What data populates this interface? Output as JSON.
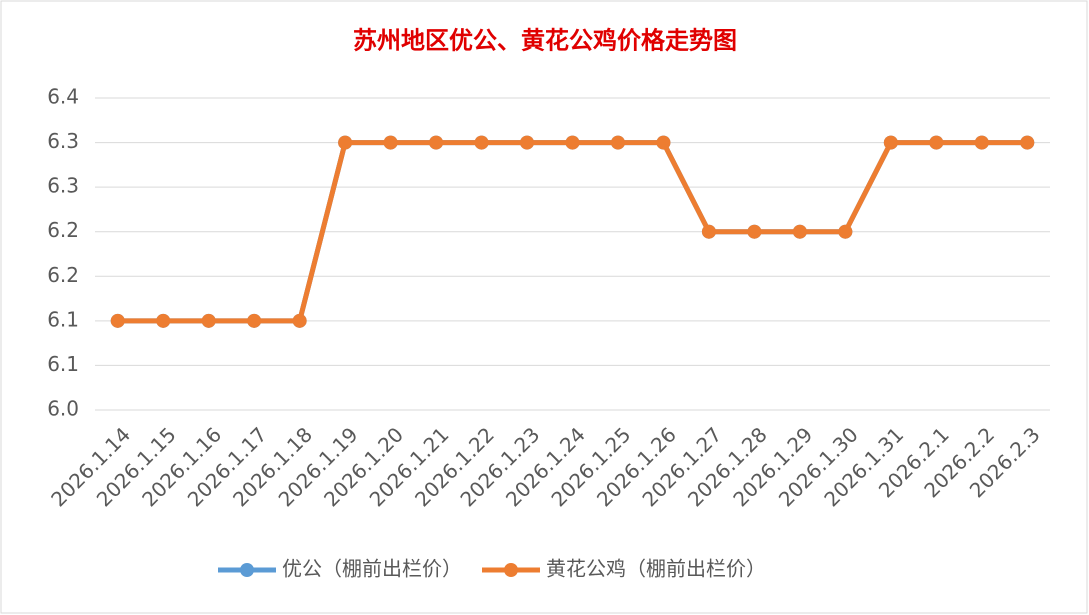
{
  "chart_data": {
    "type": "line",
    "title": "苏州地区优公、黄花公鸡价格走势图",
    "categories": [
      "2026.1.14",
      "2026.1.15",
      "2026.1.16",
      "2026.1.17",
      "2026.1.18",
      "2026.1.19",
      "2026.1.20",
      "2026.1.21",
      "2026.1.22",
      "2026.1.23",
      "2026.1.24",
      "2026.1.25",
      "2026.1.26",
      "2026.1.27",
      "2026.1.28",
      "2026.1.29",
      "2026.1.30",
      "2026.1.31",
      "2026.2.1",
      "2026.2.2",
      "2026.2.3"
    ],
    "series": [
      {
        "name": "优公（棚前出栏价）",
        "color": "#5b9bd5",
        "values": [
          6.1,
          6.1,
          6.1,
          6.1,
          6.1,
          6.3,
          6.3,
          6.3,
          6.3,
          6.3,
          6.3,
          6.3,
          6.3,
          6.2,
          6.2,
          6.2,
          6.2,
          6.3,
          6.3,
          6.3,
          6.3
        ]
      },
      {
        "name": "黄花公鸡（棚前出栏价）",
        "color": "#ed7d31",
        "values": [
          6.1,
          6.1,
          6.1,
          6.1,
          6.1,
          6.3,
          6.3,
          6.3,
          6.3,
          6.3,
          6.3,
          6.3,
          6.3,
          6.2,
          6.2,
          6.2,
          6.2,
          6.3,
          6.3,
          6.3,
          6.3
        ]
      }
    ],
    "ylim": [
      6.0,
      6.35
    ],
    "yticks": [
      {
        "value": 6.0,
        "label": "6.0"
      },
      {
        "value": 6.05,
        "label": "6.1"
      },
      6.1,
      {
        "value": 6.15,
        "label": "6.2"
      },
      6.2,
      {
        "value": 6.25,
        "label": "6.3"
      },
      6.3,
      {
        "value": 6.35,
        "label": "6.4"
      }
    ],
    "grid": true,
    "legend": "bottom"
  }
}
